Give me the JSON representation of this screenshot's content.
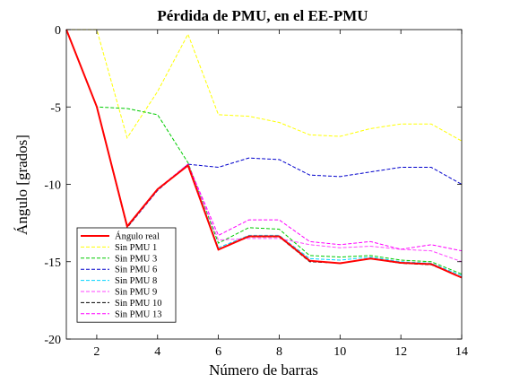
{
  "chart_data": {
    "type": "line",
    "title": "Pérdida de PMU, en el EE-PMU",
    "xlabel": "Número de barras",
    "ylabel": "Ángulo [grados]",
    "xlim": [
      1,
      14
    ],
    "ylim": [
      -20,
      0
    ],
    "xticks": [
      2,
      4,
      6,
      8,
      10,
      12,
      14
    ],
    "yticks": [
      0,
      -5,
      -10,
      -15,
      -20
    ],
    "grid": false,
    "legend_position": "bottom-left",
    "x": [
      1,
      2,
      3,
      4,
      5,
      6,
      7,
      8,
      9,
      10,
      11,
      12,
      13,
      14
    ],
    "series": [
      {
        "name": "Ángulo real",
        "color": "#ff0000",
        "style": "solid",
        "values": [
          0,
          -4.98,
          -12.72,
          -10.32,
          -8.78,
          -14.22,
          -13.36,
          -13.36,
          -14.94,
          -15.1,
          -14.8,
          -15.07,
          -15.16,
          -16.03
        ]
      },
      {
        "name": "Sin PMU 1",
        "color": "#ffff00",
        "style": "dashed",
        "values": [
          0,
          0,
          -7.0,
          -4.0,
          -0.3,
          -5.5,
          -5.6,
          -6.0,
          -6.8,
          -6.9,
          -6.4,
          -6.1,
          -6.1,
          -7.2
        ]
      },
      {
        "name": "Sin PMU 3",
        "color": "#00cc00",
        "style": "dashed",
        "values": [
          0,
          -5.0,
          -5.1,
          -5.5,
          -8.6,
          -13.8,
          -12.8,
          -12.9,
          -14.6,
          -14.7,
          -14.6,
          -14.9,
          -15.0,
          -15.8
        ]
      },
      {
        "name": "Sin PMU 6",
        "color": "#0000cc",
        "style": "dashed",
        "values": [
          0,
          -5.0,
          -12.8,
          -10.4,
          -8.7,
          -8.9,
          -8.3,
          -8.4,
          -9.4,
          -9.5,
          -9.2,
          -8.9,
          -8.9,
          -10.0
        ]
      },
      {
        "name": "Sin PMU 8",
        "color": "#00d4ff",
        "style": "dashed",
        "values": [
          0,
          -5.0,
          -12.7,
          -10.3,
          -8.7,
          -14.1,
          -13.3,
          -13.3,
          -14.8,
          -14.9,
          -14.7,
          -15.0,
          -15.1,
          -15.9
        ]
      },
      {
        "name": "Sin PMU 9",
        "color": "#ff44ff",
        "style": "dashed",
        "values": [
          0,
          -5.0,
          -12.7,
          -10.3,
          -8.7,
          -13.6,
          -13.5,
          -13.5,
          -13.9,
          -14.1,
          -14.0,
          -14.2,
          -14.3,
          -15.0
        ]
      },
      {
        "name": "Sin PMU 10",
        "color": "#000000",
        "style": "dashed",
        "values": [
          0,
          -5.0,
          -12.8,
          -10.3,
          -8.8,
          -14.2,
          -13.4,
          -13.4,
          -15.0,
          -15.1,
          -14.8,
          -15.1,
          -15.2,
          -16.0
        ]
      },
      {
        "name": "Sin PMU 13",
        "color": "#ff00ff",
        "style": "dashed",
        "values": [
          0,
          -5.0,
          -12.7,
          -10.3,
          -8.7,
          -13.3,
          -12.3,
          -12.3,
          -13.7,
          -13.9,
          -13.7,
          -14.2,
          -13.9,
          -14.3
        ]
      }
    ]
  }
}
